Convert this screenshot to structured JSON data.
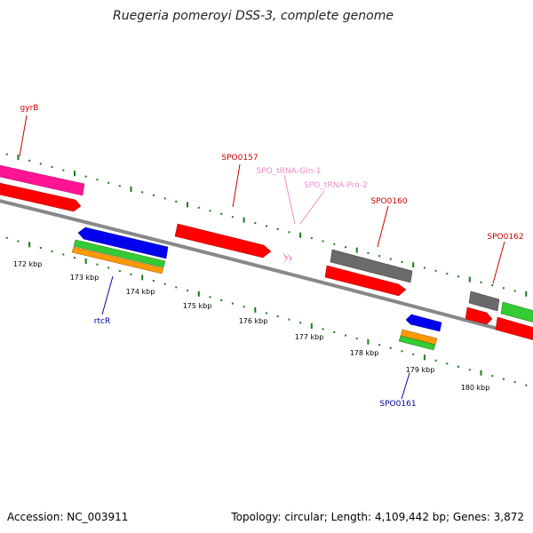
{
  "title": "Ruegeria pomeroyi DSS-3, complete genome",
  "footer": {
    "accession": "Accession: NC_003911",
    "topology": "Topology: circular; Length: 4,109,442 bp; Genes: 3,872"
  },
  "ticks": [
    "172 kbp",
    "173 kbp",
    "174 kbp",
    "175 kbp",
    "176 kbp",
    "177 kbp",
    "178 kbp",
    "179 kbp",
    "180 kbp"
  ],
  "gene_labels": [
    {
      "id": "gyrB",
      "text": "gyrB",
      "color": "#cc0000"
    },
    {
      "id": "spo0157",
      "text": "SPO0157",
      "color": "#cc0000"
    },
    {
      "id": "trna-gln",
      "text": "SPO_tRNA-Gln-1",
      "color": "#f08cc8"
    },
    {
      "id": "trna-pro",
      "text": "SPO_tRNA-Pro-2",
      "color": "#f08cc8"
    },
    {
      "id": "spo0160",
      "text": "SPO0160",
      "color": "#cc0000"
    },
    {
      "id": "spo0162",
      "text": "SPO0162",
      "color": "#cc0000"
    },
    {
      "id": "rtcr",
      "text": "rtcR",
      "color": "#0000aa"
    },
    {
      "id": "spo0161",
      "text": "SPO0161",
      "color": "#0000aa"
    }
  ],
  "colors": {
    "cds": "#ff0000",
    "gyrb": "#ff1493",
    "gray_feature": "#6a6a6a",
    "rtcr": "#0000ee",
    "green_feature": "#33cc33",
    "orange_feature": "#ff9900",
    "trna": "#ff88cc",
    "backbone": "#808080",
    "tick": "#1a7a1a"
  }
}
